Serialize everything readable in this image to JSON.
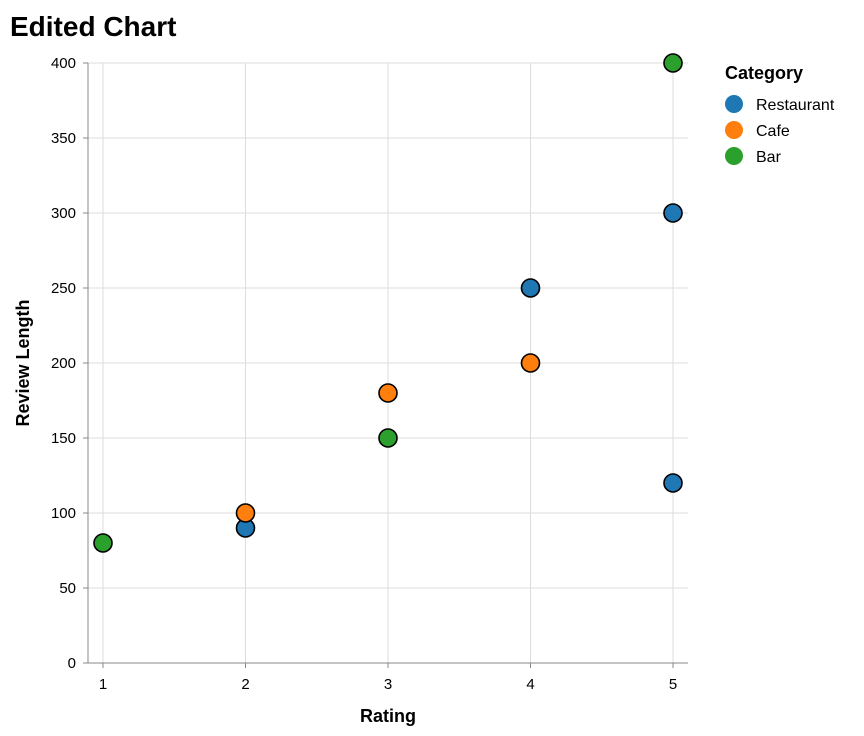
{
  "chart_data": {
    "type": "scatter",
    "title": "Edited Chart",
    "xlabel": "Rating",
    "ylabel": "Review Length",
    "xlim": [
      1,
      5
    ],
    "ylim": [
      0,
      400
    ],
    "x_ticks": [
      "1",
      "2",
      "3",
      "4",
      "5"
    ],
    "y_ticks": [
      "0",
      "50",
      "100",
      "150",
      "200",
      "250",
      "300",
      "350",
      "400"
    ],
    "grid": true,
    "legend": {
      "title": "Category",
      "placement": "top-right",
      "entries": [
        "Restaurant",
        "Cafe",
        "Bar"
      ]
    },
    "colors": {
      "Restaurant": "#1f77b4",
      "Cafe": "#ff7f0e",
      "Bar": "#2ca02c"
    },
    "series": [
      {
        "name": "Restaurant",
        "points": [
          {
            "x": 2,
            "y": 90
          },
          {
            "x": 4,
            "y": 250
          },
          {
            "x": 5,
            "y": 300
          },
          {
            "x": 5,
            "y": 120
          }
        ]
      },
      {
        "name": "Cafe",
        "points": [
          {
            "x": 2,
            "y": 100
          },
          {
            "x": 3,
            "y": 180
          },
          {
            "x": 4,
            "y": 200
          }
        ]
      },
      {
        "name": "Bar",
        "points": [
          {
            "x": 1,
            "y": 80
          },
          {
            "x": 3,
            "y": 150
          },
          {
            "x": 5,
            "y": 400
          }
        ]
      }
    ]
  }
}
